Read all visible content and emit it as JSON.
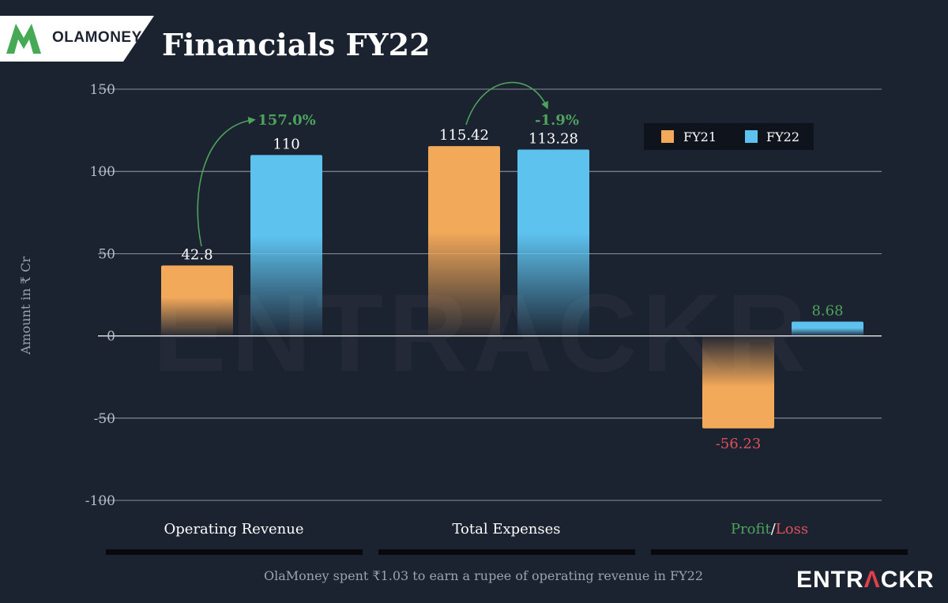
{
  "header": {
    "logo_text": "OLAMONEY",
    "title": "Financials FY22"
  },
  "footer": {
    "note": "OlaMoney spent ₹1.03 to earn a rupee of operating revenue in FY22",
    "brand_main": "ENTR",
    "brand_accent": "Λ",
    "brand_rest": "CKR"
  },
  "watermark": "ENTRACKR",
  "colors": {
    "fy21": "#f3a95a",
    "fy22": "#5ec2ee",
    "profit": "#4ea35c",
    "loss": "#e0505a",
    "growth": "#4ea35c",
    "gridline": "#aeb6c0"
  },
  "chart_data": {
    "type": "bar",
    "title": "Financials FY22",
    "ylabel": "Amount in ₹ Cr",
    "ylim": [
      -100,
      150
    ],
    "yticks": [
      150,
      100,
      50,
      0,
      -50,
      -100
    ],
    "categories": [
      "Operating Revenue",
      "Total Expenses",
      "Profit/Loss"
    ],
    "category_label_parts": [
      [
        {
          "text": "Operating Revenue",
          "tone": "normal"
        }
      ],
      [
        {
          "text": "Total Expenses",
          "tone": "normal"
        }
      ],
      [
        {
          "text": "Profit",
          "tone": "profit"
        },
        {
          "text": "/",
          "tone": "normal"
        },
        {
          "text": "Loss",
          "tone": "loss"
        }
      ]
    ],
    "series": [
      {
        "name": "FY21",
        "values": [
          42.8,
          115.42,
          -56.23
        ],
        "labels": [
          "42.8",
          "115.42",
          "-56.23"
        ]
      },
      {
        "name": "FY22",
        "values": [
          110,
          113.28,
          8.68
        ],
        "labels": [
          "110",
          "113.28",
          "8.68"
        ]
      }
    ],
    "annotations": [
      {
        "category": "Operating Revenue",
        "text": "157.0%"
      },
      {
        "category": "Total Expenses",
        "text": "-1.9%"
      }
    ],
    "legend": {
      "placement": "top-right",
      "entries": [
        "FY21",
        "FY22"
      ]
    },
    "grid": true
  }
}
